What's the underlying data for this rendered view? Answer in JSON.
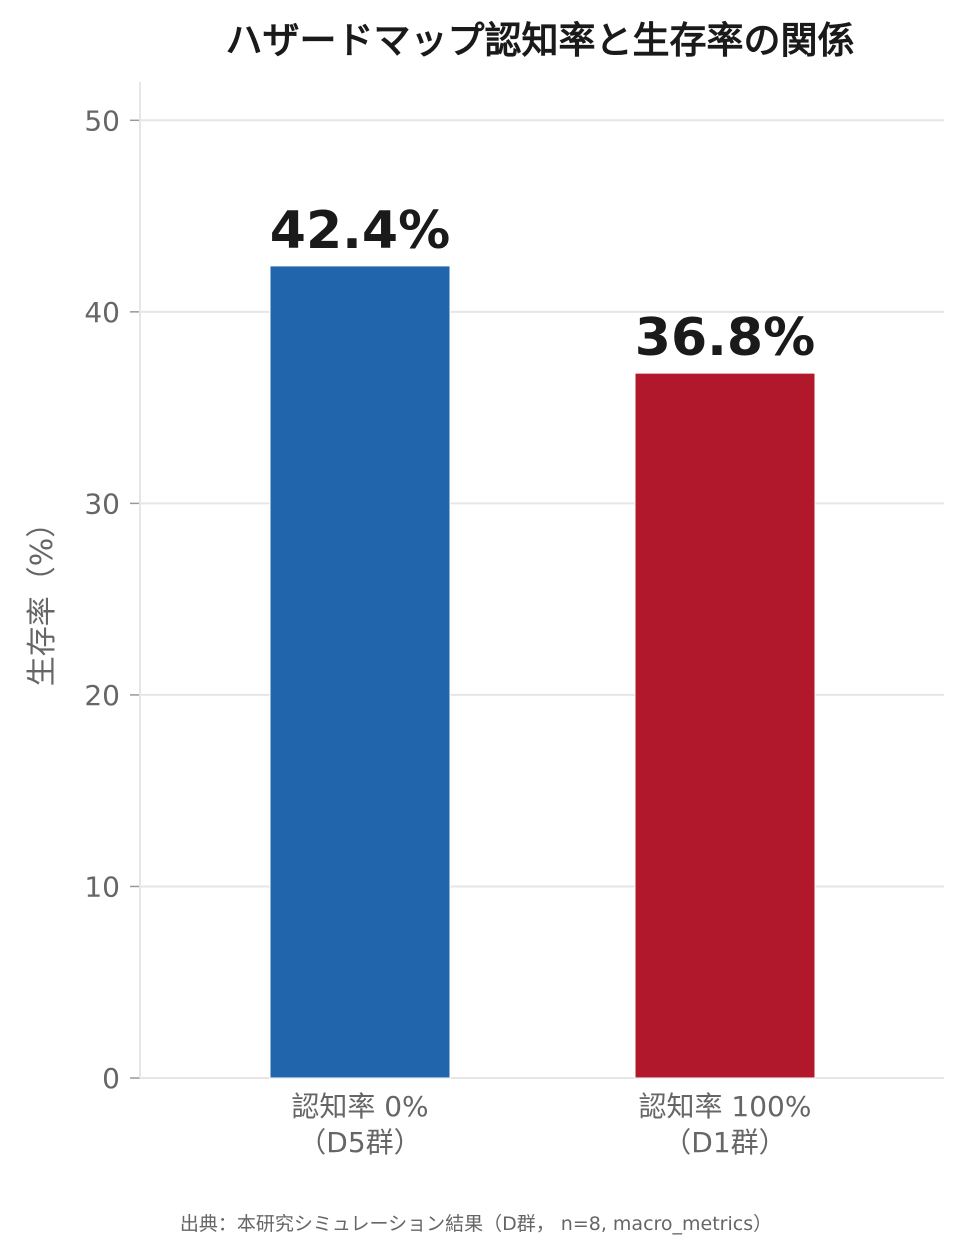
{
  "chart_data": {
    "type": "bar",
    "title": "ハザードマップ認知率と生存率の関係",
    "ylabel": "生存率（%）",
    "xlabel": "",
    "ylim": [
      0,
      52
    ],
    "yticks": [
      0,
      10,
      20,
      30,
      40,
      50
    ],
    "grid": true,
    "legend": "none",
    "categories": [
      [
        "認知率 0%",
        "（D5群）"
      ],
      [
        "認知率 100%",
        "（D1群）"
      ]
    ],
    "values": [
      42.4,
      36.8
    ],
    "data_labels": [
      "42.4%",
      "36.8%"
    ],
    "colors": [
      "#2166ac",
      "#b2182b"
    ],
    "source": "出典：本研究シミュレーション結果（D群， n=8, macro_metrics）"
  }
}
